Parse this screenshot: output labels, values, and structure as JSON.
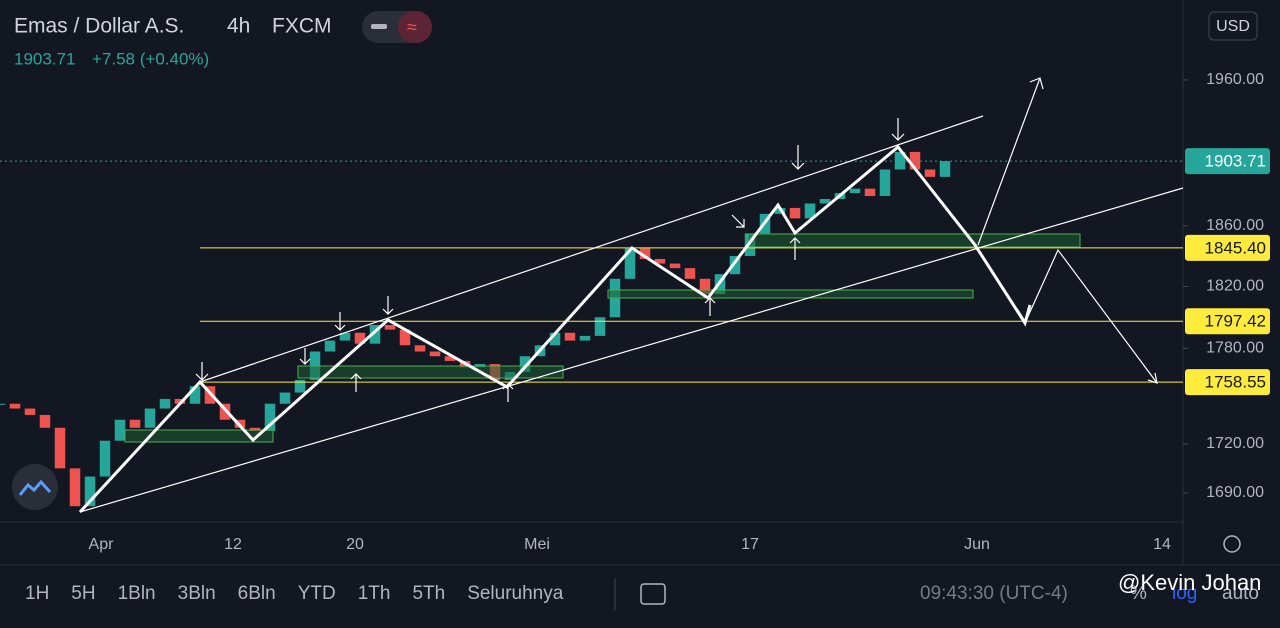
{
  "header": {
    "symbol": "Emas / Dollar A.S.",
    "interval": "4h",
    "source": "FXCM",
    "price": "1903.71",
    "change": "+7.58 (+0.40%)"
  },
  "currency": "USD",
  "watermark": "@Kevin Johan",
  "chart_data": {
    "type": "candlestick",
    "closes": [
      1745,
      1742,
      1738,
      1730,
      1705,
      1682,
      1700,
      1722,
      1735,
      1730,
      1742,
      1748,
      1745,
      1756,
      1745,
      1735,
      1730,
      1728,
      1745,
      1752,
      1760,
      1778,
      1785,
      1790,
      1783,
      1795,
      1792,
      1782,
      1778,
      1775,
      1772,
      1768,
      1770,
      1760,
      1765,
      1775,
      1782,
      1790,
      1785,
      1788,
      1800,
      1825,
      1845,
      1838,
      1835,
      1832,
      1825,
      1815,
      1828,
      1840,
      1855,
      1868,
      1872,
      1865,
      1875,
      1878,
      1882,
      1885,
      1880,
      1898,
      1910,
      1898,
      1893,
      1903.71
    ],
    "log": true,
    "ylim": [
      1672.5,
      2017
    ],
    "yticks": [
      {
        "value": 1690,
        "label": "1690.00"
      },
      {
        "value": 1720,
        "label": "1720.00"
      },
      {
        "value": 1780,
        "label": "1780.00"
      },
      {
        "value": 1820,
        "label": "1820.00"
      },
      {
        "value": 1860,
        "label": "1860.00"
      },
      {
        "value": 1960,
        "label": "1960.00"
      }
    ],
    "xticks": [
      "Apr",
      "12",
      "20",
      "Mei",
      "17",
      "Jun",
      "14"
    ],
    "levels": [
      {
        "value": 1903.71,
        "label": "1903.71",
        "color": "#26a69a"
      },
      {
        "value": 1845.4,
        "label": "1845.40",
        "color": "#ffeb3b"
      },
      {
        "value": 1797.42,
        "label": "1797.42",
        "color": "#ffeb3b"
      },
      {
        "value": 1758.55,
        "label": "1758.55",
        "color": "#ffeb3b"
      }
    ],
    "up_color": "#26a69a",
    "down_color": "#ef5350"
  },
  "toolbar": {
    "ranges": [
      "1H",
      "5H",
      "1Bln",
      "3Bln",
      "6Bln",
      "YTD",
      "1Th",
      "5Th",
      "Seluruhnya"
    ],
    "clock": "09:43:30 (UTC-4)",
    "percent": "%",
    "log": "log",
    "auto": "auto"
  }
}
